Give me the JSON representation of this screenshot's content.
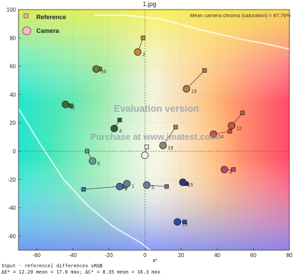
{
  "chart_data": {
    "type": "scatter",
    "title": "1.jpg",
    "annotation": "Mean camera chroma (saturation) = 87.76%",
    "watermark_line1": "Evaluation version",
    "watermark_line2": "Purchase at www.imatest.com",
    "xlabel": "a*",
    "ylabel": "",
    "xlim": [
      -70,
      80
    ],
    "ylim": [
      -70,
      100
    ],
    "xticks": [
      -60,
      -40,
      -20,
      0,
      20,
      40,
      60,
      80
    ],
    "yticks": [
      -60,
      -40,
      -20,
      0,
      20,
      40,
      60,
      80,
      100
    ],
    "grid": true,
    "legend_position": "top-left",
    "legend": [
      {
        "label": "Reference",
        "marker": "square"
      },
      {
        "label": "Camera",
        "marker": "circle"
      }
    ],
    "patches": [
      {
        "id": "2",
        "ref": [
          -1,
          80
        ],
        "cam": [
          -4,
          70
        ],
        "color": "#c88a2a"
      },
      {
        "id": "16",
        "ref": [
          -25,
          58
        ],
        "cam": [
          -27,
          58
        ],
        "color": "#6f7a3a"
      },
      {
        "id": "13",
        "ref": [
          33,
          57
        ],
        "cam": [
          23,
          44
        ],
        "color": "#b87a3a"
      },
      {
        "id": "11",
        "ref": [
          -41,
          32
        ],
        "cam": [
          -44,
          33
        ],
        "color": "#3f6a3a"
      },
      {
        "id": "4",
        "ref": [
          -14,
          22
        ],
        "cam": [
          -17,
          16
        ],
        "color": "#3b5a38"
      },
      {
        "id": "12",
        "ref": [
          54,
          27
        ],
        "cam": [
          48,
          18
        ],
        "color": "#c9583a"
      },
      {
        "id": "14",
        "ref": [
          47,
          14
        ],
        "cam": [
          38,
          12
        ],
        "color": "#d14a4a"
      },
      {
        "id": "19",
        "ref": [
          17,
          17
        ],
        "cam": [
          10,
          4
        ],
        "color": "#8e8678"
      },
      {
        "id": "6",
        "ref": [
          -32,
          0
        ],
        "cam": [
          -29,
          -7
        ],
        "color": "#6a9a9a"
      },
      {
        "id": "8",
        "ref": [
          49,
          -13
        ],
        "cam": [
          44,
          -13
        ],
        "color": "#c8406a"
      },
      {
        "id": "3",
        "ref": [
          -34,
          -27
        ],
        "cam": [
          -14,
          -25
        ],
        "color": "#4a6f9a"
      },
      {
        "id": "1",
        "ref": [
          -11,
          -25
        ],
        "cam": [
          -10,
          -23
        ],
        "color": "#6a7f9a"
      },
      {
        "id": "5",
        "ref": [
          12,
          -25
        ],
        "cam": [
          1,
          -24
        ],
        "color": "#6a80a0"
      },
      {
        "id": "15",
        "ref": [
          23,
          -23
        ],
        "cam": [
          21,
          -22
        ],
        "color": "#2a3a7a"
      },
      {
        "id": "10",
        "ref": [
          22,
          -50
        ],
        "cam": [
          18,
          -50
        ],
        "color": "#2a4aa8"
      },
      {
        "id": "neutral",
        "ref": [
          1,
          3
        ],
        "cam": [
          0,
          -3
        ],
        "color": "#eeeeee"
      }
    ],
    "footer_line1": "Input - reference] differences  sRGB",
    "footer_line2": "ΔE* = 12.20 mean = 17.6 max; ΔC* = 8.35 mean = 16.3 max"
  }
}
